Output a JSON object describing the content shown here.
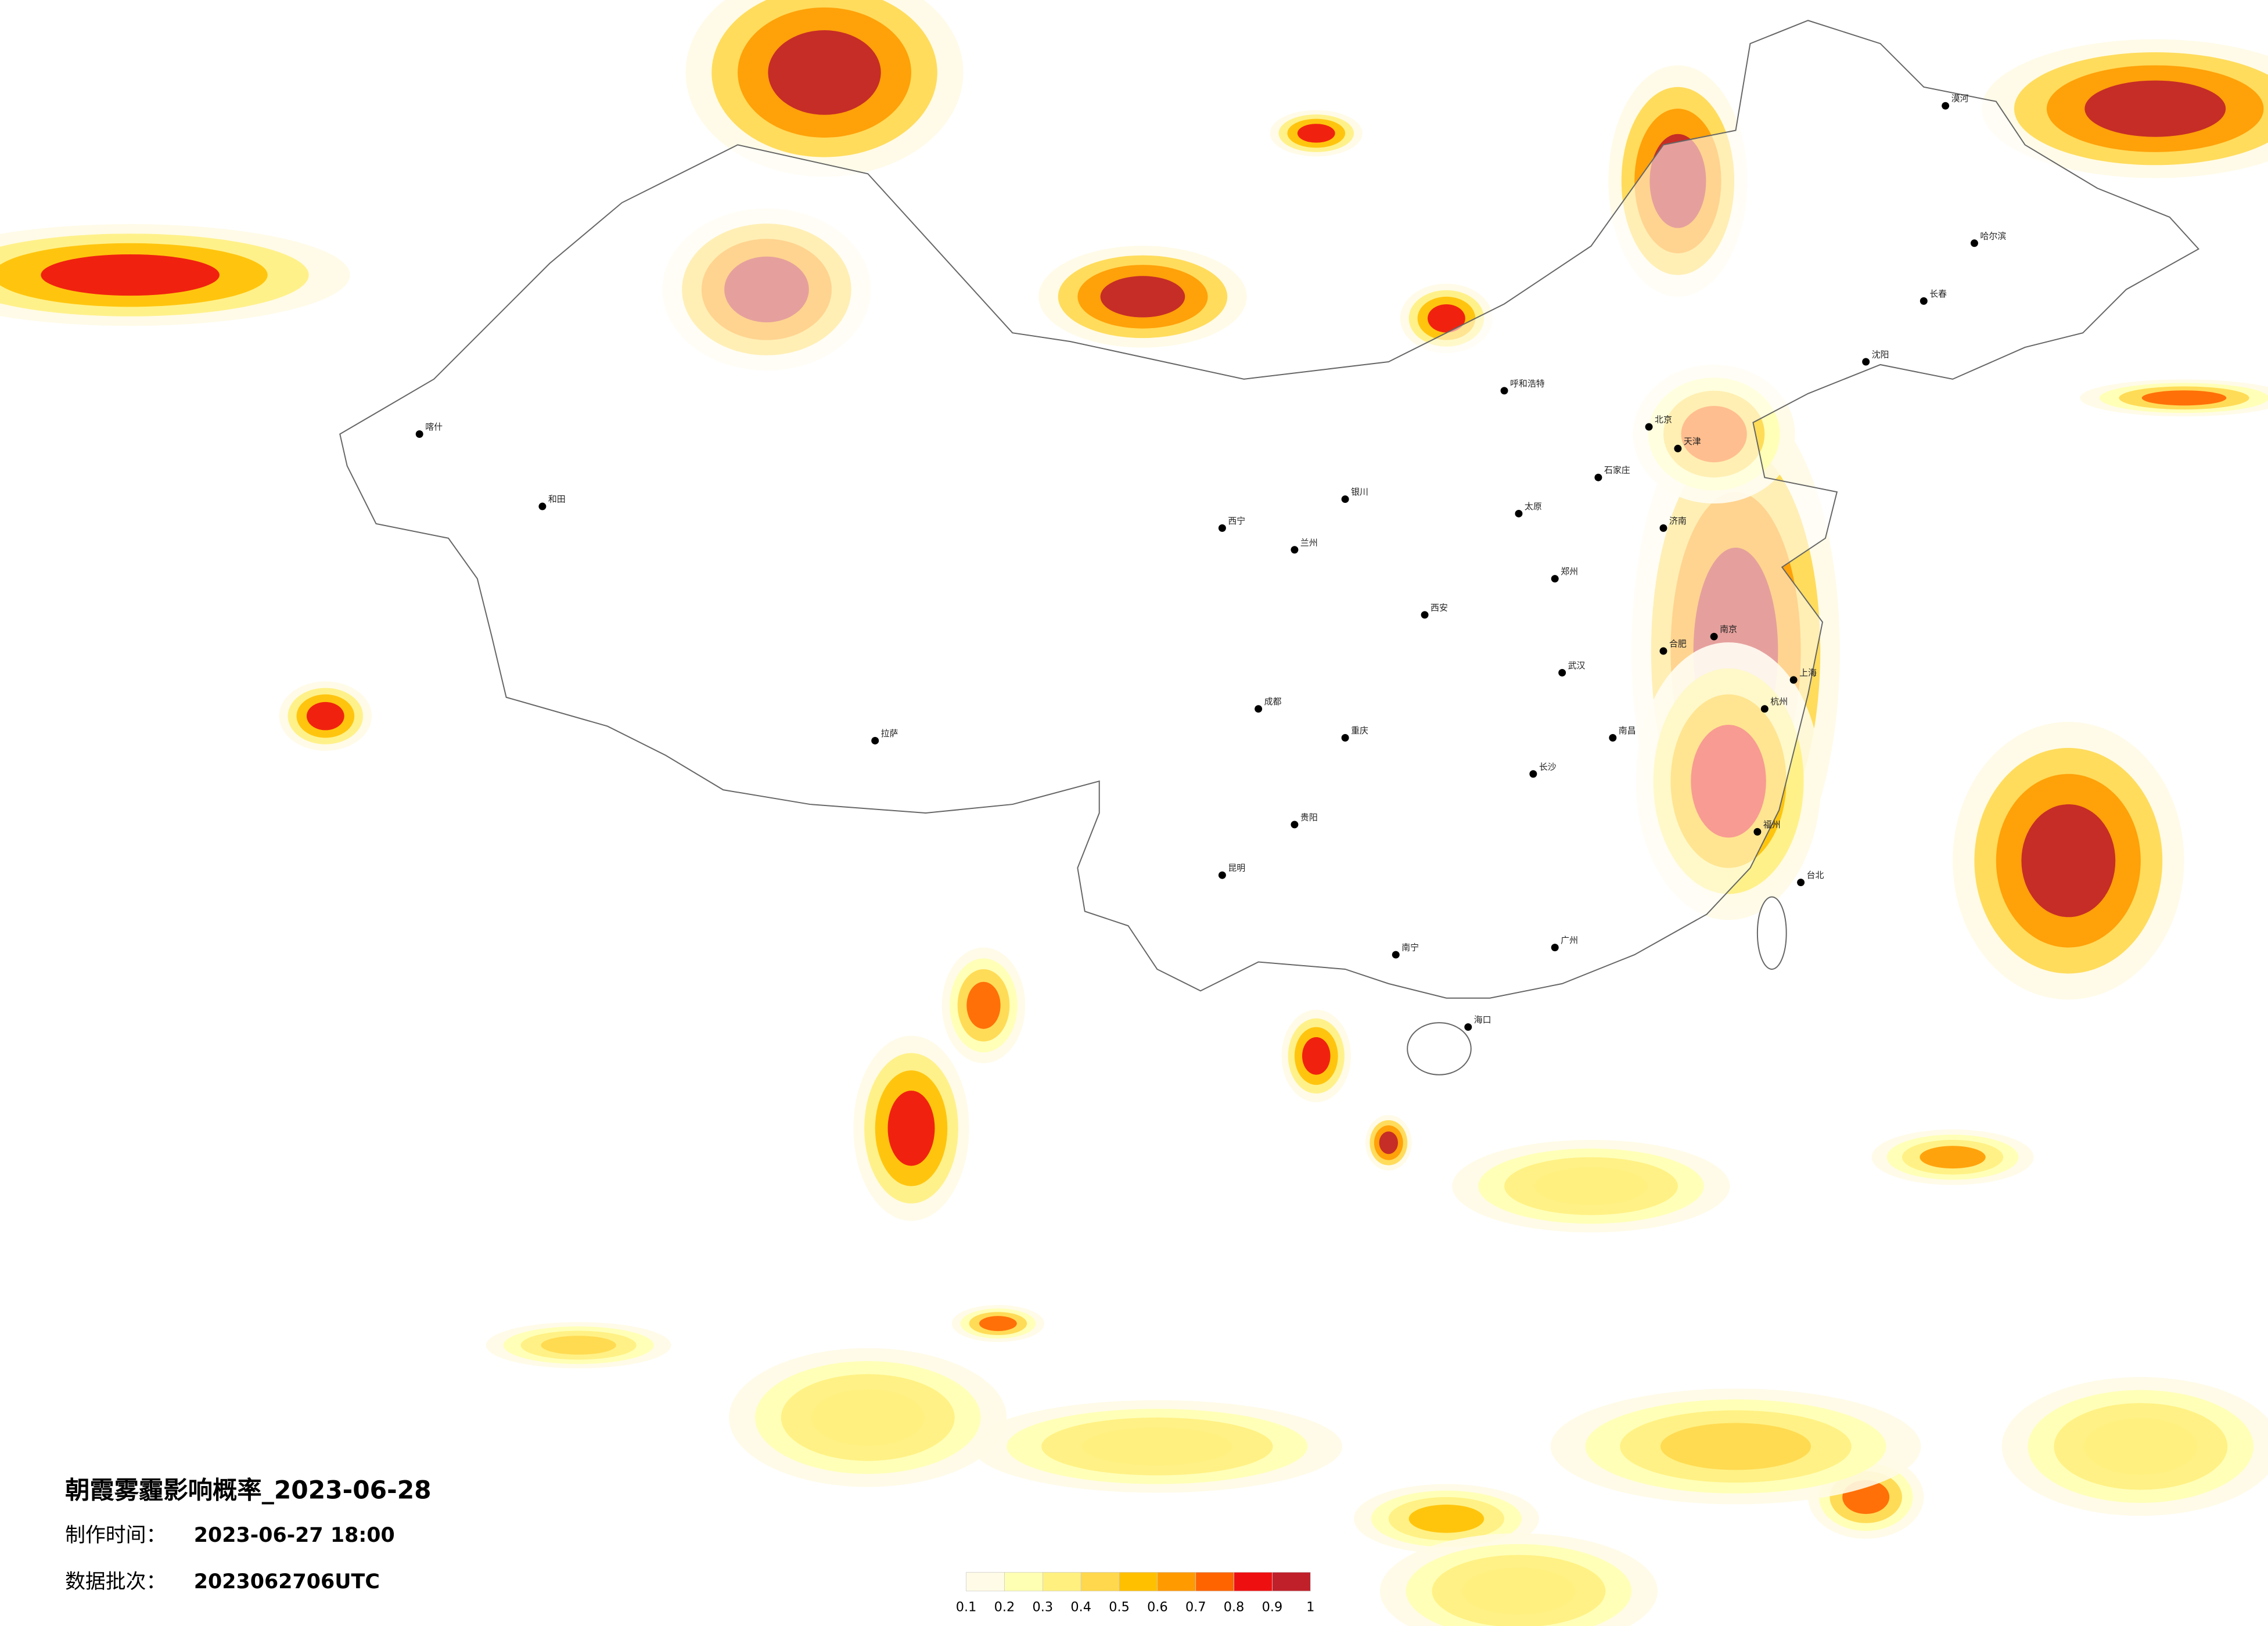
{
  "title": "朝霞雾霾影响概率_2023-06-28",
  "made_time_label": "制作时间：",
  "made_time": "2023-06-27 18:00",
  "batch_label": "数据批次：",
  "batch": "2023062706UTC",
  "colorbar": {
    "ticks": [
      0.1,
      0.2,
      0.3,
      0.4,
      0.5,
      0.6,
      0.7,
      0.8,
      0.9,
      1
    ],
    "colors": [
      "#fffbe6",
      "#ffffb3",
      "#fff080",
      "#ffd84d",
      "#ffc000",
      "#ff9a00",
      "#ff6400",
      "#ee1010",
      "#c0202a"
    ]
  },
  "cities": [
    "哈尔滨",
    "长春",
    "沈阳",
    "北京",
    "天津",
    "石家庄",
    "济南",
    "郑州",
    "西安",
    "兰州",
    "西宁",
    "银川",
    "呼和浩特",
    "太原",
    "武汉",
    "长沙",
    "南昌",
    "合肥",
    "南京",
    "上海",
    "杭州",
    "福州",
    "台北",
    "广州",
    "南宁",
    "海口",
    "昆明",
    "贵阳",
    "成都",
    "重庆",
    "拉萨",
    "和田",
    "喀什",
    "漠河"
  ]
}
